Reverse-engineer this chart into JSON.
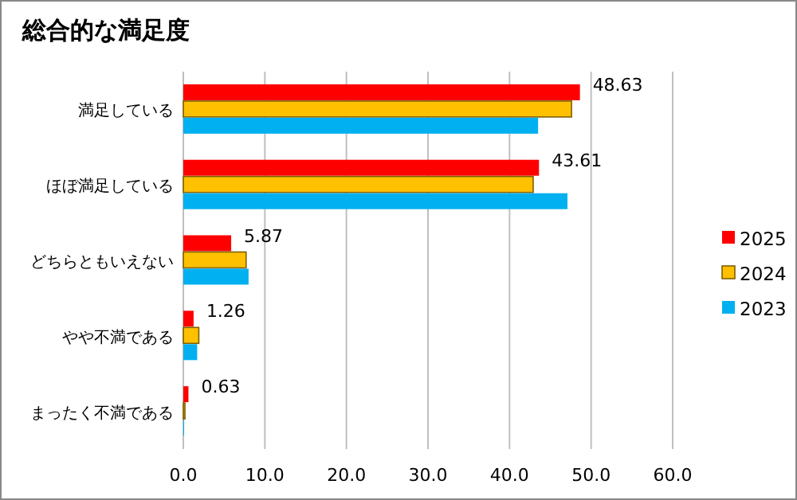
{
  "chart_data": {
    "type": "bar",
    "orientation": "horizontal",
    "title": "総合的な満足度",
    "categories": [
      "満足している",
      "ほぼ満足している",
      "どちらともいえない",
      "やや不満である",
      "まったく不満である"
    ],
    "series": [
      {
        "name": "2025",
        "color": "#ff0000",
        "values": [
          48.63,
          43.61,
          5.87,
          1.26,
          0.63
        ],
        "value_labels": [
          "48.63",
          "43.61",
          "5.87",
          "1.26",
          "0.63"
        ]
      },
      {
        "name": "2024",
        "color": "#ffc000",
        "values": [
          47.6,
          42.9,
          7.7,
          1.9,
          0.2
        ]
      },
      {
        "name": "2023",
        "color": "#00b0f0",
        "values": [
          43.5,
          47.1,
          8.0,
          1.7,
          0.1
        ]
      }
    ],
    "xlim": [
      0,
      60
    ],
    "xticks": [
      {
        "value": 0,
        "label": "0.0"
      },
      {
        "value": 10,
        "label": "10.0"
      },
      {
        "value": 20,
        "label": "20.0"
      },
      {
        "value": 30,
        "label": "30.0"
      },
      {
        "value": 40,
        "label": "40.0"
      },
      {
        "value": 50,
        "label": "50.0"
      },
      {
        "value": 60,
        "label": "60.0"
      }
    ],
    "grid": "x",
    "legend": "right"
  }
}
